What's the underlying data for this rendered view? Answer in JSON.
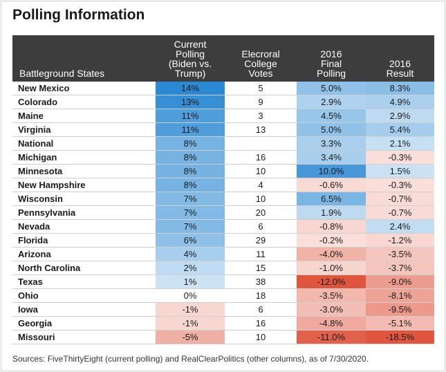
{
  "title": "Polling Information",
  "headers": {
    "state": "Battleground States",
    "current_lines": [
      "Current",
      "Polling",
      "(Biden vs.",
      "Trump)"
    ],
    "votes_lines": [
      "Elecroral",
      "College",
      "Votes"
    ],
    "final_lines": [
      "2016",
      "Final",
      "Polling"
    ],
    "result_lines": [
      "2016",
      "Result"
    ]
  },
  "rows": [
    {
      "state": "New Mexico",
      "current": "14%",
      "votes": "5",
      "final": "5.0%",
      "result": "8.3%"
    },
    {
      "state": "Colorado",
      "current": "13%",
      "votes": "9",
      "final": "2.9%",
      "result": "4.9%"
    },
    {
      "state": "Maine",
      "current": "11%",
      "votes": "3",
      "final": "4.5%",
      "result": "2.9%"
    },
    {
      "state": "Virginia",
      "current": "11%",
      "votes": "13",
      "final": "5.0%",
      "result": "5.4%"
    },
    {
      "state": "National",
      "current": "8%",
      "votes": "",
      "final": "3.3%",
      "result": "2.1%"
    },
    {
      "state": "Michigan",
      "current": "8%",
      "votes": "16",
      "final": "3.4%",
      "result": "-0.3%"
    },
    {
      "state": "Minnesota",
      "current": "8%",
      "votes": "10",
      "final": "10.0%",
      "result": "1.5%"
    },
    {
      "state": "New Hampshire",
      "current": "8%",
      "votes": "4",
      "final": "-0.6%",
      "result": "-0.3%"
    },
    {
      "state": "Wisconsin",
      "current": "7%",
      "votes": "10",
      "final": "6.5%",
      "result": "-0.7%"
    },
    {
      "state": "Pennsylvania",
      "current": "7%",
      "votes": "20",
      "final": "1.9%",
      "result": "-0.7%"
    },
    {
      "state": "Nevada",
      "current": "7%",
      "votes": "6",
      "final": "-0.8%",
      "result": "2.4%"
    },
    {
      "state": "Florida",
      "current": "6%",
      "votes": "29",
      "final": "-0.2%",
      "result": "-1.2%"
    },
    {
      "state": "Arizona",
      "current": "4%",
      "votes": "11",
      "final": "-4.0%",
      "result": "-3.5%"
    },
    {
      "state": "North Carolina",
      "current": "2%",
      "votes": "15",
      "final": "-1.0%",
      "result": "-3.7%"
    },
    {
      "state": "Texas",
      "current": "1%",
      "votes": "38",
      "final": "-12.0%",
      "result": "-9.0%"
    },
    {
      "state": "Ohio",
      "current": "0%",
      "votes": "18",
      "final": "-3.5%",
      "result": "-8.1%"
    },
    {
      "state": "Iowa",
      "current": "-1%",
      "votes": "6",
      "final": "-3.0%",
      "result": "-9.5%"
    },
    {
      "state": "Georgia",
      "current": "-1%",
      "votes": "16",
      "final": "-4.8%",
      "result": "-5.1%"
    },
    {
      "state": "Missouri",
      "current": "-5%",
      "votes": "10",
      "final": "-11.0%",
      "result": "-18.5%"
    }
  ],
  "source": "Sources: FiveThirtyEight (current polling) and RealClearPolitics (other columns), as of 7/30/2020."
}
